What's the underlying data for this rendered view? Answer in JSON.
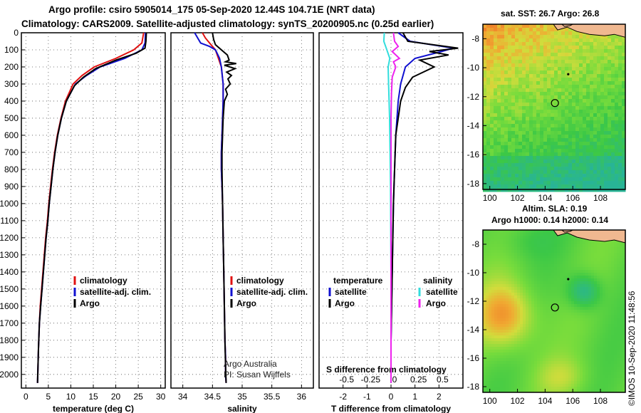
{
  "header": {
    "line1": "Argo profile: csiro 5905014_175 05-Sep-2020 12.44S 104.71E (NRT data)",
    "line2": "Climatology: CARS2009. Satellite-adjusted climatology: synTS_20200905.nc (0.25d earlier)"
  },
  "credit": "©IMOS 10-Sep-2020 11:48:56",
  "colors": {
    "climatology": "#e01010",
    "satellite": "#1010d0",
    "argo": "#000000",
    "sal_satellite": "#33dddd",
    "sal_argo": "#ee22ee",
    "land": "#f0b890",
    "coast": "#000000"
  },
  "chart_data": [
    {
      "type": "line",
      "title": "",
      "xlabel": "temperature (deg C)",
      "ylabel": "",
      "xlim": [
        -1,
        31
      ],
      "ylim": [
        2080,
        0
      ],
      "xticks": [
        0,
        5,
        10,
        15,
        20,
        25,
        30
      ],
      "xtick_labels": [
        "0",
        "5",
        "10",
        "15",
        "20",
        "25",
        "30"
      ],
      "yticks": [
        0,
        100,
        200,
        300,
        400,
        500,
        600,
        700,
        800,
        900,
        1000,
        1100,
        1200,
        1300,
        1400,
        1500,
        1600,
        1700,
        1800,
        1900,
        2000
      ],
      "ytick_labels": [
        "0",
        "100",
        "200",
        "300",
        "400",
        "500",
        "600",
        "700",
        "800",
        "900",
        "1000",
        "1100",
        "1200",
        "1300",
        "1400",
        "1500",
        "1600",
        "1700",
        "1800",
        "1900",
        "2000"
      ],
      "grid": true,
      "legend": [
        {
          "label": "climatology",
          "color": "#e01010"
        },
        {
          "label": "satellite-adj. clim.",
          "color": "#1010d0"
        },
        {
          "label": "Argo",
          "color": "#000000"
        }
      ],
      "series": [
        {
          "name": "climatology",
          "color": "#e01010",
          "x": [
            26.2,
            25.8,
            24.0,
            20.0,
            15.2,
            12.5,
            10.5,
            8.8,
            7.8,
            7.0,
            6.4,
            5.9,
            5.5,
            5.1,
            4.8,
            4.4,
            4.1,
            3.8,
            3.5,
            3.2,
            3.0,
            2.8,
            2.6
          ],
          "y": [
            0,
            60,
            100,
            150,
            200,
            250,
            300,
            400,
            500,
            600,
            700,
            800,
            900,
            1000,
            1100,
            1200,
            1300,
            1400,
            1500,
            1600,
            1700,
            1850,
            2050
          ]
        },
        {
          "name": "satellite-adj. clim.",
          "color": "#1010d0",
          "x": [
            26.6,
            26.5,
            25.8,
            22.0,
            16.5,
            13.5,
            11.0,
            9.0,
            7.9,
            7.1,
            6.5,
            6.0,
            5.6,
            5.2,
            4.9,
            4.5,
            4.2,
            3.9,
            3.6,
            3.3,
            3.0,
            2.8,
            2.6
          ],
          "y": [
            0,
            60,
            100,
            150,
            200,
            250,
            300,
            400,
            500,
            600,
            700,
            800,
            900,
            1000,
            1100,
            1200,
            1300,
            1400,
            1500,
            1600,
            1700,
            1850,
            2050
          ]
        },
        {
          "name": "Argo",
          "color": "#000000",
          "x": [
            26.8,
            26.7,
            26.5,
            24.5,
            20.0,
            15.5,
            12.8,
            10.8,
            9.0,
            7.9,
            7.1,
            6.5,
            6.0,
            5.6,
            5.2,
            4.9,
            4.5,
            4.2,
            3.9,
            3.6,
            3.3,
            3.0,
            2.8,
            2.6
          ],
          "y": [
            0,
            50,
            90,
            120,
            160,
            210,
            260,
            310,
            400,
            500,
            600,
            700,
            800,
            900,
            1000,
            1100,
            1200,
            1300,
            1400,
            1500,
            1600,
            1700,
            1850,
            2050
          ]
        }
      ]
    },
    {
      "type": "line",
      "title": "",
      "xlabel": "salinity",
      "ylabel": "",
      "xlim": [
        33.8,
        36.2
      ],
      "ylim": [
        2080,
        0
      ],
      "xticks": [
        34,
        34.5,
        35,
        35.5,
        36
      ],
      "xtick_labels": [
        "34",
        "34.5",
        "35",
        "35.5",
        "36"
      ],
      "grid": true,
      "legend": [
        {
          "label": "climatology",
          "color": "#e01010"
        },
        {
          "label": "satellite-adj. clim.",
          "color": "#1010d0"
        },
        {
          "label": "Argo",
          "color": "#000000"
        }
      ],
      "annotations": [
        "Argo Australia",
        "PI: Susan Wijffels"
      ],
      "series": [
        {
          "name": "climatology",
          "color": "#e01010",
          "x": [
            34.33,
            34.38,
            34.45,
            34.5,
            34.55,
            34.6,
            34.65,
            34.68,
            34.68,
            34.67,
            34.66,
            34.65,
            34.65,
            34.66,
            34.67,
            34.68,
            34.69,
            34.7,
            34.71,
            34.72,
            34.72,
            34.73
          ],
          "y": [
            0,
            30,
            60,
            80,
            100,
            150,
            200,
            300,
            400,
            500,
            600,
            700,
            800,
            900,
            1000,
            1200,
            1400,
            1600,
            1800,
            1900,
            2000,
            2050
          ]
        },
        {
          "name": "satellite-adj. clim.",
          "color": "#1010d0",
          "x": [
            34.2,
            34.25,
            34.3,
            34.45,
            34.55,
            34.62,
            34.65,
            34.68,
            34.68,
            34.67,
            34.66,
            34.65,
            34.65,
            34.66,
            34.67,
            34.68,
            34.69,
            34.7,
            34.71,
            34.72,
            34.72,
            34.73
          ],
          "y": [
            0,
            30,
            60,
            80,
            100,
            150,
            200,
            300,
            400,
            500,
            600,
            700,
            800,
            900,
            1000,
            1200,
            1400,
            1600,
            1800,
            1900,
            2000,
            2050
          ]
        },
        {
          "name": "Argo",
          "color": "#000000",
          "x": [
            34.5,
            34.52,
            34.55,
            34.65,
            34.75,
            34.78,
            34.72,
            34.9,
            34.7,
            34.88,
            34.74,
            34.82,
            34.76,
            34.8,
            34.72,
            34.75,
            34.7,
            34.68,
            34.67,
            34.66,
            34.66,
            34.67,
            34.68,
            34.69,
            34.7,
            34.71,
            34.72,
            34.73
          ],
          "y": [
            0,
            40,
            70,
            100,
            130,
            160,
            170,
            180,
            190,
            210,
            230,
            250,
            270,
            300,
            330,
            360,
            400,
            500,
            600,
            700,
            800,
            1000,
            1200,
            1400,
            1600,
            1800,
            1950,
            2050
          ]
        }
      ]
    },
    {
      "type": "line",
      "title": "",
      "xlabel": "T difference from climatology",
      "ylabel": "",
      "xlim": [
        -3,
        3
      ],
      "ylim": [
        2080,
        0
      ],
      "xticks": [
        -2,
        -1,
        0,
        1,
        2
      ],
      "xtick_labels": [
        "-2",
        "-1",
        "0",
        "1",
        "2"
      ],
      "secondary_xlabel": "S difference from climatology",
      "secondary_xticks": [
        -0.5,
        -0.25,
        0,
        0.25,
        0.5
      ],
      "secondary_xtick_labels": [
        "-0.5",
        "-0.25",
        "0",
        "0.25",
        "0.5"
      ],
      "grid": true,
      "legend": [
        {
          "label": "temperature",
          "color": "#000000"
        },
        {
          "label": "satellite",
          "color": "#1010d0"
        },
        {
          "label": "Argo",
          "color": "#000000"
        },
        {
          "label": "salinity",
          "color": "#000000"
        },
        {
          "label": "satellite",
          "color": "#33dddd"
        },
        {
          "label": "Argo",
          "color": "#ee22ee"
        }
      ],
      "series": [
        {
          "name": "T satellite",
          "color": "#1010d0",
          "x": [
            0.3,
            0.8,
            2.6,
            2.1,
            1.0,
            0.6,
            0.4,
            0.3,
            0.2,
            0.15,
            0.1,
            0.05,
            0.0,
            0.0
          ],
          "y": [
            0,
            50,
            90,
            110,
            150,
            200,
            300,
            400,
            600,
            800,
            1000,
            1400,
            1800,
            2050
          ]
        },
        {
          "name": "T Argo",
          "color": "#000000",
          "x": [
            0.5,
            0.7,
            2.8,
            1.6,
            2.4,
            1.2,
            1.8,
            0.9,
            0.6,
            0.4,
            0.3,
            0.2,
            0.15,
            0.1,
            0.05,
            0.0,
            0.0
          ],
          "y": [
            0,
            50,
            90,
            110,
            130,
            160,
            200,
            260,
            320,
            400,
            500,
            600,
            800,
            1000,
            1400,
            1800,
            2050
          ]
        },
        {
          "name": "S satellite",
          "color": "#33dddd",
          "x": [
            -0.28,
            -0.3,
            -0.2,
            -0.05,
            -0.12,
            -0.1,
            -0.08,
            -0.06,
            -0.04,
            -0.02,
            0.0,
            0.0
          ],
          "y": [
            0,
            50,
            90,
            150,
            200,
            300,
            400,
            500,
            700,
            900,
            1400,
            2050
          ]
        },
        {
          "name": "S Argo",
          "color": "#ee22ee",
          "x": [
            0.1,
            0.15,
            0.3,
            0.05,
            0.35,
            0.1,
            0.2,
            0.05,
            0.02,
            0.0,
            0.0
          ],
          "y": [
            0,
            50,
            80,
            110,
            150,
            170,
            200,
            260,
            350,
            500,
            2050
          ]
        }
      ]
    },
    {
      "type": "heatmap",
      "title": "sat. SST: 26.7 Argo: 26.8",
      "xlabel": "",
      "ylabel": "",
      "xlim": [
        99.5,
        109.8
      ],
      "ylim": [
        -18.4,
        -7
      ],
      "xticks": [
        100,
        102,
        104,
        106,
        108
      ],
      "xtick_labels": [
        "100",
        "102",
        "104",
        "106",
        "108"
      ],
      "yticks": [
        -8,
        -10,
        -12,
        -14,
        -16,
        -18
      ],
      "ytick_labels": [
        "-8",
        "-10",
        "-12",
        "-14",
        "-16",
        "-18"
      ],
      "argo_position": [
        104.71,
        -12.44
      ],
      "island_position": [
        105.67,
        -10.45
      ]
    },
    {
      "type": "heatmap",
      "title": "Altim. SLA: 0.19",
      "subtitle": "Argo h1000: 0.14 h2000: 0.14",
      "xlabel": "",
      "ylabel": "",
      "xlim": [
        99.5,
        109.8
      ],
      "ylim": [
        -18.4,
        -7
      ],
      "xticks": [
        100,
        102,
        104,
        106,
        108
      ],
      "xtick_labels": [
        "100",
        "102",
        "104",
        "106",
        "108"
      ],
      "yticks": [
        -8,
        -10,
        -12,
        -14,
        -16,
        -18
      ],
      "ytick_labels": [
        "-8",
        "-10",
        "-12",
        "-14",
        "-16",
        "-18"
      ],
      "argo_position": [
        104.71,
        -12.44
      ],
      "island_position": [
        105.67,
        -10.45
      ]
    }
  ]
}
